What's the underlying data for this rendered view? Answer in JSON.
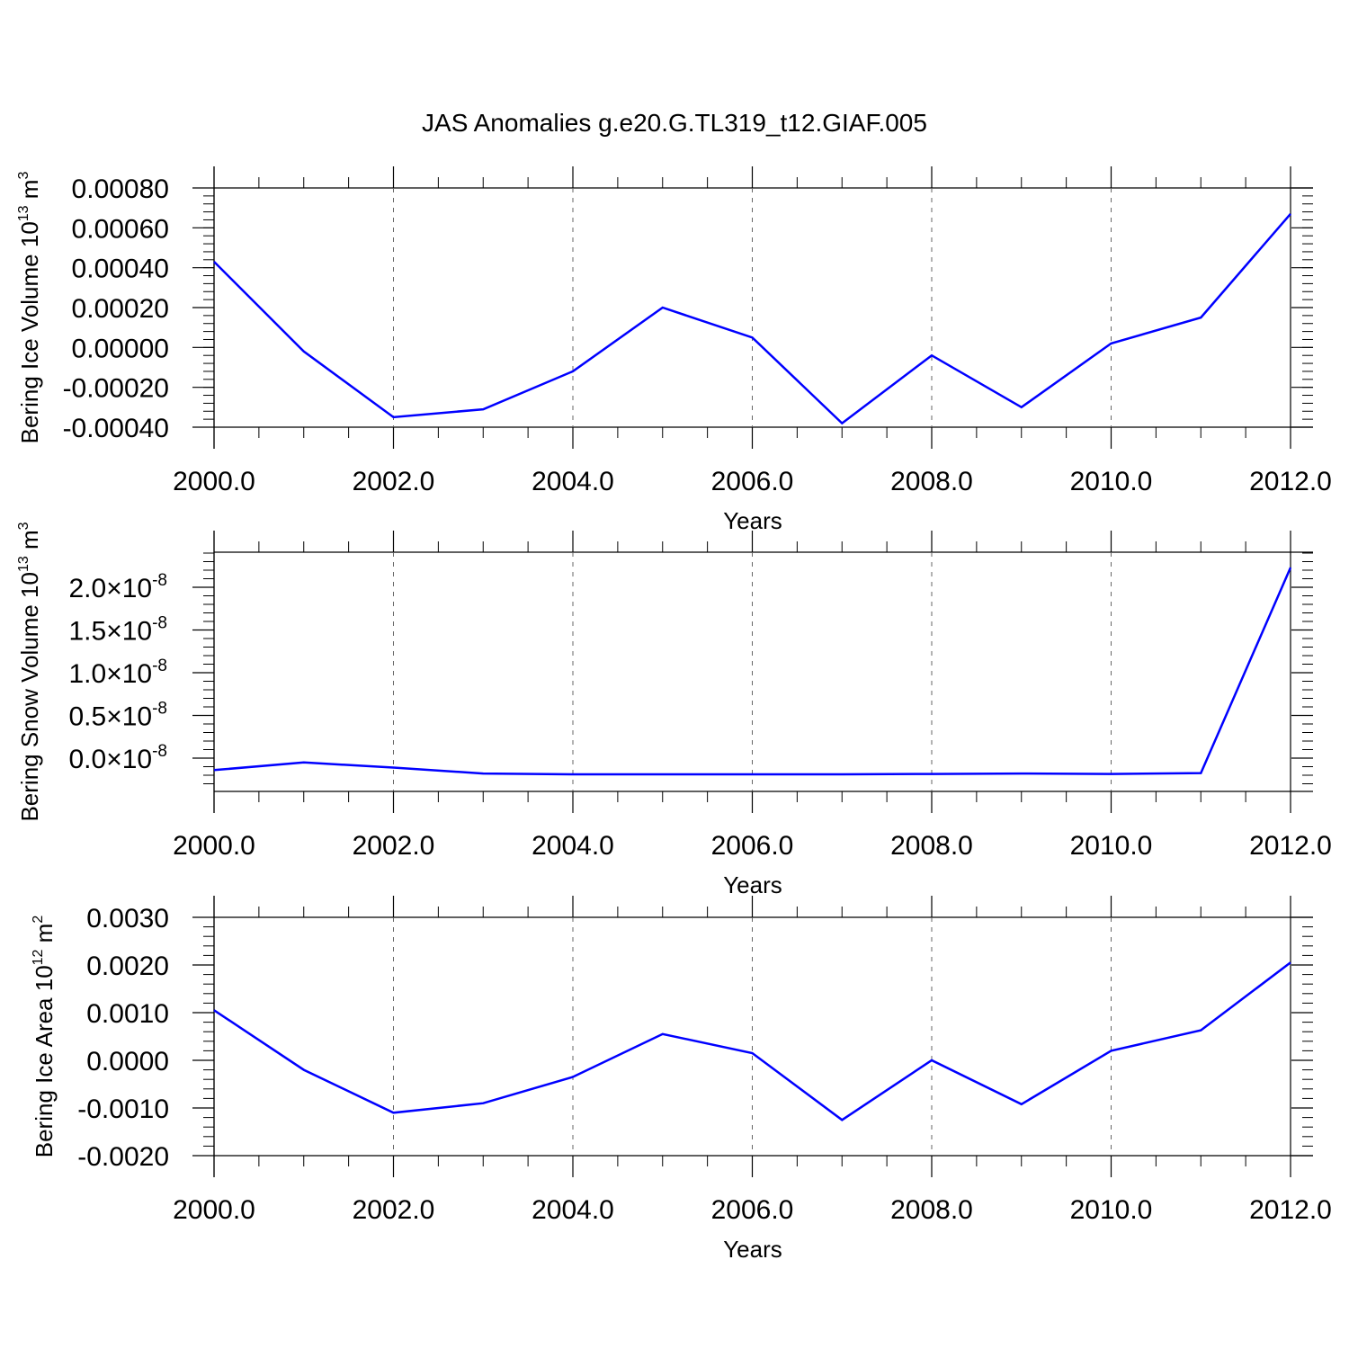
{
  "title": "JAS Anomalies g.e20.G.TL319_t12.GIAF.005",
  "colors": {
    "series": "#0000ff",
    "axis": "#000000",
    "grid": "#666666",
    "background": "#ffffff"
  },
  "chart_data": [
    {
      "type": "line",
      "xlabel": "Years",
      "ylabel": {
        "text": "Bering Ice Volume 10",
        "sup": "13",
        "unit": " m",
        "unit_sup": "3"
      },
      "xlim": [
        2000,
        2012
      ],
      "ylim": [
        -0.0004,
        0.0008
      ],
      "x_ticks": [
        "2000.0",
        "2002.0",
        "2004.0",
        "2006.0",
        "2008.0",
        "2010.0",
        "2012.0"
      ],
      "y_ticks": [
        {
          "value": 0.0008,
          "label": "0.00080"
        },
        {
          "value": 0.0006,
          "label": "0.00060"
        },
        {
          "value": 0.0004,
          "label": "0.00040"
        },
        {
          "value": 0.0002,
          "label": "0.00020"
        },
        {
          "value": 0.0,
          "label": "0.00000"
        },
        {
          "value": -0.0002,
          "label": "-0.00020"
        },
        {
          "value": -0.0004,
          "label": "-0.00040"
        }
      ],
      "grid": "vertical dashed at major x ticks",
      "x": [
        2000,
        2001,
        2002,
        2003,
        2004,
        2005,
        2006,
        2007,
        2008,
        2009,
        2010,
        2011,
        2012
      ],
      "values": [
        0.00043,
        -2e-05,
        -0.00035,
        -0.00031,
        -0.00012,
        0.0002,
        5e-05,
        -0.00038,
        -4e-05,
        -0.0003,
        2e-05,
        0.00015,
        0.00067
      ]
    },
    {
      "type": "line",
      "xlabel": "Years",
      "ylabel": {
        "text": "Bering Snow Volume 10",
        "sup": "13",
        "unit": " m",
        "unit_sup": "3"
      },
      "xlim": [
        2000,
        2012
      ],
      "ylim": [
        -3.5e-09,
        2.45e-08
      ],
      "x_ticks": [
        "2000.0",
        "2002.0",
        "2004.0",
        "2006.0",
        "2008.0",
        "2010.0",
        "2012.0"
      ],
      "y_ticks": [
        {
          "value": 2e-08,
          "mantissa": "2.0",
          "exp": "-8"
        },
        {
          "value": 1.5e-08,
          "mantissa": "1.5",
          "exp": "-8"
        },
        {
          "value": 1e-08,
          "mantissa": "1.0",
          "exp": "-8"
        },
        {
          "value": 5e-09,
          "mantissa": "0.5",
          "exp": "-8"
        },
        {
          "value": 0.0,
          "mantissa": "0.0",
          "exp": "-8"
        }
      ],
      "grid": "vertical dashed at major x ticks",
      "x": [
        2000,
        2001,
        2002,
        2003,
        2004,
        2005,
        2006,
        2007,
        2008,
        2009,
        2010,
        2011,
        2012
      ],
      "values": [
        -1.4e-09,
        -5e-10,
        -1.1e-09,
        -1.8e-09,
        -1.9e-09,
        -1.9e-09,
        -1.9e-09,
        -1.9e-09,
        -1.85e-09,
        -1.8e-09,
        -1.85e-09,
        -1.75e-09,
        2.23e-08
      ]
    },
    {
      "type": "line",
      "xlabel": "Years",
      "ylabel": {
        "text": "Bering Ice Area 10",
        "sup": "12",
        "unit": " m",
        "unit_sup": "2"
      },
      "xlim": [
        2000,
        2012
      ],
      "ylim": [
        -0.002,
        0.003
      ],
      "x_ticks": [
        "2000.0",
        "2002.0",
        "2004.0",
        "2006.0",
        "2008.0",
        "2010.0",
        "2012.0"
      ],
      "y_ticks": [
        {
          "value": 0.003,
          "label": "0.0030"
        },
        {
          "value": 0.002,
          "label": "0.0020"
        },
        {
          "value": 0.001,
          "label": "0.0010"
        },
        {
          "value": 0.0,
          "label": "0.0000"
        },
        {
          "value": -0.001,
          "label": "-0.0010"
        },
        {
          "value": -0.002,
          "label": "-0.0020"
        }
      ],
      "grid": "vertical dashed at major x ticks",
      "x": [
        2000,
        2001,
        2002,
        2003,
        2004,
        2005,
        2006,
        2007,
        2008,
        2009,
        2010,
        2011,
        2012
      ],
      "values": [
        0.00105,
        -0.0002,
        -0.0011,
        -0.0009,
        -0.00035,
        0.00055,
        0.00015,
        -0.00125,
        0.0,
        -0.00092,
        0.0002,
        0.00063,
        0.00205
      ]
    }
  ]
}
